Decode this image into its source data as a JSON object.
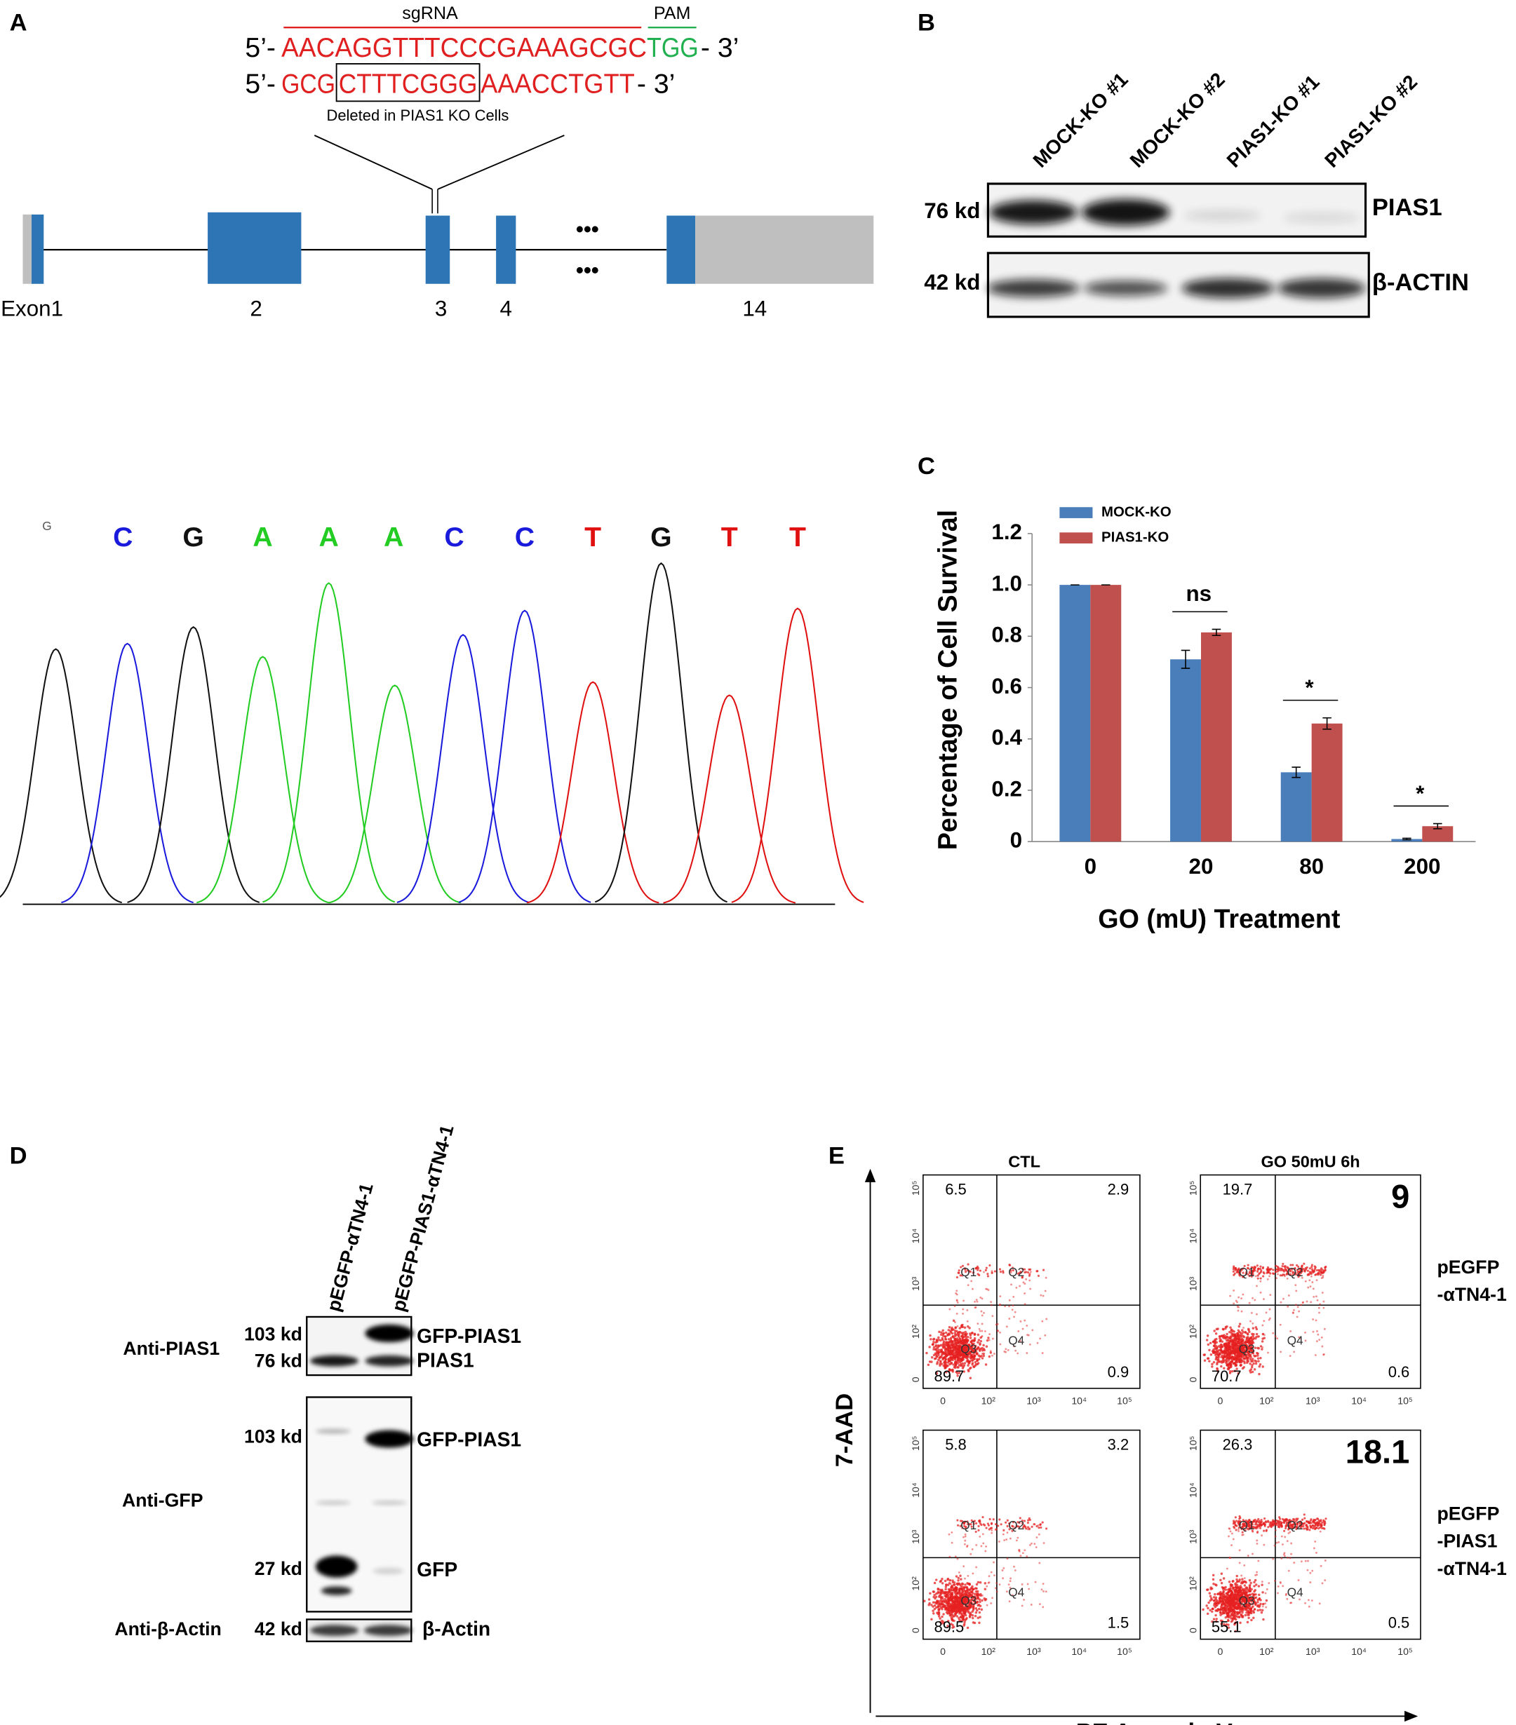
{
  "panel_a": {
    "label": "A",
    "sgrna_label": "sgRNA",
    "pam_label": "PAM",
    "seq1": {
      "prefix": "5’-",
      "target": "AACAGGTTTCCCGAAAGCGC",
      "pam": "TGG",
      "suffix": "- 3’"
    },
    "seq2": {
      "prefix": "5’-",
      "left": "GCG",
      "deleted": "CTTTCGGG",
      "right": "AAACCTGTT",
      "suffix": "- 3’"
    },
    "deletion_note": "Deleted in PIAS1 KO Cells",
    "ellipsis": "•••",
    "exons": [
      "Exon1",
      "2",
      "3",
      "4",
      "14"
    ]
  },
  "panel_b": {
    "label": "B",
    "lanes": [
      "MOCK-KO #1",
      "MOCK-KO #2",
      "PIAS1-KO #1",
      "PIAS1-KO #2"
    ],
    "markers": [
      "76 kd",
      "42 kd"
    ],
    "proteins": [
      "PIAS1",
      "β-ACTIN"
    ]
  },
  "chromatogram": {
    "bases": [
      "G",
      "C",
      "G",
      "A",
      "A",
      "A",
      "C",
      "C",
      "T",
      "G",
      "T",
      "T"
    ]
  },
  "chart_data": {
    "type": "bar",
    "panel_label": "C",
    "y_label": "Percentage of Cell Survival",
    "x_label": "GO (mU) Treatment",
    "categories": [
      "0",
      "20",
      "80",
      "200"
    ],
    "series": [
      {
        "name": "MOCK-KO",
        "color": "#4a7ebb",
        "values": [
          1.0,
          0.71,
          0.27,
          0.01
        ],
        "errors": [
          0,
          0.035,
          0.02,
          0.003
        ]
      },
      {
        "name": "PIAS1-KO",
        "color": "#c0504d",
        "values": [
          1.0,
          0.815,
          0.46,
          0.06
        ],
        "errors": [
          0,
          0.012,
          0.022,
          0.01
        ]
      }
    ],
    "ylim": [
      0,
      1.2
    ],
    "yticks": [
      0,
      0.2,
      0.4,
      0.6,
      0.8,
      {
        "value": 1.0,
        "label": "1.0"
      },
      1.2
    ],
    "grid": false,
    "legend": "upper left",
    "annotations": [
      {
        "text": "ns",
        "x": "20"
      },
      {
        "text": "*",
        "x": "80"
      },
      {
        "text": "*",
        "x": "200"
      }
    ]
  },
  "panel_d": {
    "label": "D",
    "lanes": [
      "pEGFP-αTN4-1",
      "pEGFP-PIAS1-αTN4-1"
    ],
    "rows": [
      "Anti-PIAS1",
      "Anti-GFP",
      "Anti-β-Actin"
    ],
    "markers": [
      "103 kd",
      "76 kd",
      "103 kd",
      "27 kd",
      "42 kd"
    ],
    "bands": [
      "GFP-PIAS1",
      "PIAS1",
      "GFP-PIAS1",
      "GFP",
      "β-Actin"
    ]
  },
  "panel_e": {
    "label": "E",
    "columns": [
      "CTL",
      "GO 50mU 6h"
    ],
    "y_axis": "7-AAD",
    "x_axis": "PE Annexin V",
    "axis_ticks": [
      "0",
      "10²",
      "10³",
      "10⁴",
      "10⁵"
    ],
    "quadrant_names": [
      "Q1",
      "Q2",
      "Q3",
      "Q4"
    ],
    "plots": [
      {
        "q1": "6.5",
        "q2": "2.9",
        "q3": "89.7",
        "q4": "0.9"
      },
      {
        "q1": "19.7",
        "q2": "9",
        "q3": "70.7",
        "q4": "0.6"
      },
      {
        "q1": "5.8",
        "q2": "3.2",
        "q3": "89.5",
        "q4": "1.5"
      },
      {
        "q1": "26.3",
        "q2": "18.1",
        "q3": "55.1",
        "q4": "0.5"
      }
    ],
    "row_labels": [
      [
        "pEGFP",
        "-αTN4-1"
      ],
      [
        "pEGFP",
        "-PIAS1",
        "-αTN4-1"
      ]
    ]
  }
}
